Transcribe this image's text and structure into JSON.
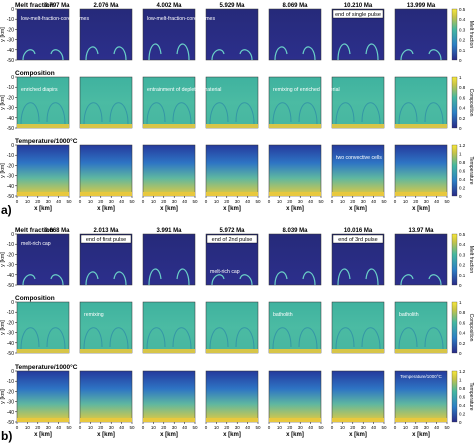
{
  "figure": {
    "panels": [
      {
        "letter": "a)",
        "times": [
          "0.797 Ma",
          "2.076 Ma",
          "4.002 Ma",
          "5.929 Ma",
          "8.069 Ma",
          "10.210 Ma",
          "13.999 Ma"
        ],
        "rows": [
          {
            "field": "melt",
            "title": "Melt fraction",
            "annotations": [
              {
                "text": "low-melt-fraction-core plumes",
                "col": 0
              },
              {
                "text": "low-melt-fraction-core plumes",
                "col": 2
              },
              {
                "text": "end of single pulse",
                "col": 5
              }
            ]
          },
          {
            "field": "composition",
            "title": "Composition",
            "annotations": [
              {
                "text": "enriched diapirs",
                "col": 0
              },
              {
                "text": "entrainment of depleted material",
                "col": 2
              },
              {
                "text": "remixing of enriched material",
                "col": 4
              }
            ]
          },
          {
            "field": "temperature",
            "title": "Temperature/1000°C",
            "annotations": [
              {
                "text": "two convective cells",
                "col": 5
              }
            ]
          }
        ]
      },
      {
        "letter": "b)",
        "times": [
          "0.668 Ma",
          "2.013 Ma",
          "3.991 Ma",
          "5.972 Ma",
          "8.039 Ma",
          "10.016 Ma",
          "13.97 Ma"
        ],
        "rows": [
          {
            "field": "melt",
            "title": "Melt fraction",
            "annotations": [
              {
                "text": "melt-rich cap",
                "col": 0
              },
              {
                "text": "end of first pulse",
                "col": 1
              },
              {
                "text": "end of 2nd pulse",
                "col": 3
              },
              {
                "text": "melt-rich cap",
                "col": 3
              },
              {
                "text": "end of 3rd pulse",
                "col": 5
              }
            ]
          },
          {
            "field": "composition",
            "title": "Composition",
            "annotations": [
              {
                "text": "remixing",
                "col": 1
              },
              {
                "text": "batholith",
                "col": 4
              },
              {
                "text": "batholith",
                "col": 6
              }
            ]
          },
          {
            "field": "temperature",
            "title": "Temperature/1000°C",
            "annotations": [
              {
                "text": "Temperature/1000°C",
                "col": 6
              }
            ]
          }
        ]
      }
    ],
    "x_ticks": [
      "0",
      "10",
      "20",
      "30",
      "40",
      "50"
    ],
    "y_ticks": [
      "0",
      "-10",
      "-20",
      "-30",
      "-40",
      "-50"
    ],
    "xlabel": "x [km]",
    "ylabel": "y [km]",
    "colorbars": [
      {
        "label": "Melt fraction",
        "ticks": [
          "0",
          "0.1",
          "0.2",
          "0.3",
          "0.4",
          "0.5"
        ]
      },
      {
        "label": "Composition",
        "ticks": [
          "0",
          "0.2",
          "0.4",
          "0.6",
          "0.8",
          "1"
        ]
      },
      {
        "label": "Temperature",
        "ticks": [
          "0",
          "0.2",
          "0.4",
          "0.6",
          "0.8",
          "1",
          "1.2"
        ]
      }
    ],
    "colors": {
      "melt_bg": "#2a2a86",
      "melt_hot": "#6ad0c8",
      "comp_bg": "#45b8a4",
      "comp_edge": "#2f8fa6",
      "temp_top": "#2b4fa8",
      "temp_bottom": "#d7c050",
      "temp_base": "#e8c83e",
      "annotation": "#ffffff"
    }
  },
  "chart_data": {
    "type": "heatmap",
    "title": "",
    "xlabel": "x [km]",
    "ylabel": "y [km]",
    "xlim": [
      0,
      50
    ],
    "ylim": [
      -50,
      0
    ],
    "panels": [
      {
        "name": "a)",
        "times_Ma": [
          0.797,
          2.076,
          4.002,
          5.929,
          8.069,
          10.21,
          13.999
        ],
        "fields": [
          "Melt fraction",
          "Composition",
          "Temperature/1000°C"
        ]
      },
      {
        "name": "b)",
        "times_Ma": [
          0.668,
          2.013,
          3.991,
          5.972,
          8.039,
          10.016,
          13.97
        ],
        "fields": [
          "Melt fraction",
          "Composition",
          "Temperature/1000°C"
        ]
      }
    ],
    "colorbars": [
      {
        "label": "Melt fraction",
        "range": [
          0,
          0.5
        ]
      },
      {
        "label": "Composition",
        "range": [
          0,
          1
        ]
      },
      {
        "label": "Temperature",
        "range": [
          0,
          1.2
        ]
      }
    ]
  }
}
